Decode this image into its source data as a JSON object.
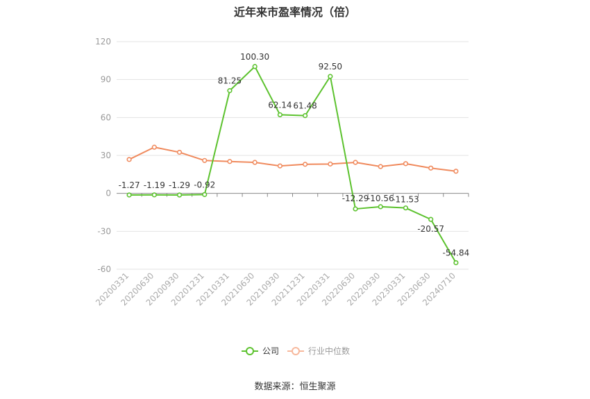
{
  "chart_data": {
    "type": "line",
    "title": "近年来市盈率情况（倍）",
    "categories": [
      "20200331",
      "20200630",
      "20200930",
      "20201231",
      "20210331",
      "20210630",
      "20210930",
      "20211231",
      "20220331",
      "20220630",
      "20220930",
      "20230331",
      "20230630",
      "20240710"
    ],
    "series": [
      {
        "name": "公司",
        "color": "#5cc22e",
        "values": [
          -1.27,
          -1.19,
          -1.29,
          -0.92,
          81.25,
          100.3,
          62.14,
          61.48,
          92.5,
          -12.29,
          -10.56,
          -11.53,
          -20.57,
          -54.84
        ],
        "labels": [
          "-1.27",
          "-1.19",
          "-1.29",
          "-0.92",
          "81.25",
          "100.30",
          "62.14",
          "61.48",
          "92.50",
          "-12.29",
          "-10.56",
          "-11.53",
          "-20.57",
          "-54.84"
        ]
      },
      {
        "name": "行业中位数",
        "color": "#f08a5d",
        "values": [
          26.8,
          36.5,
          32.5,
          26.0,
          25.2,
          24.5,
          21.7,
          23.0,
          23.2,
          24.5,
          21.2,
          23.5,
          20.0,
          17.5
        ]
      }
    ],
    "ylim": [
      -60,
      120
    ],
    "yticks": [
      "120",
      "90",
      "60",
      "30",
      "0",
      "-30",
      "-60"
    ],
    "ytick_values": [
      120,
      90,
      60,
      30,
      0,
      -30,
      -60
    ],
    "grid": true,
    "legend": "bottom-center"
  },
  "source": "数据来源：恒生聚源"
}
